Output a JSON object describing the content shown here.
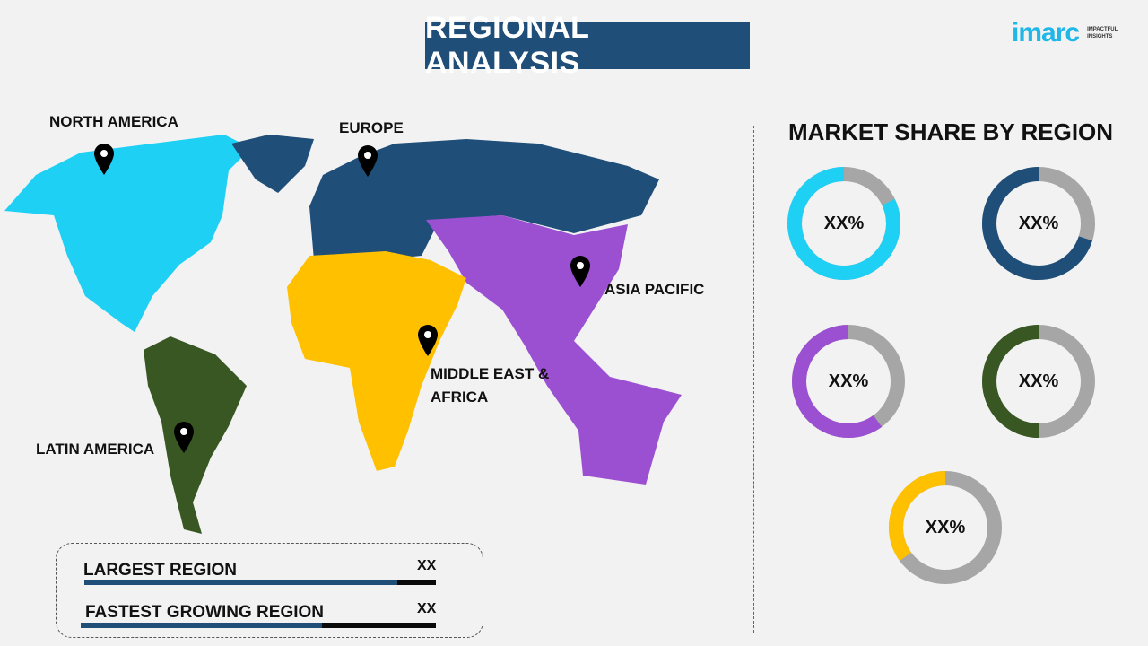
{
  "title": "REGIONAL ANALYSIS",
  "logo": {
    "word": "imarc",
    "tagline_1": "IMPACTFUL",
    "tagline_2": "INSIGHTS"
  },
  "map": {
    "regions": [
      {
        "name": "NORTH AMERICA",
        "color": "#1fd0f5"
      },
      {
        "name": "EUROPE",
        "color": "#1f4e79"
      },
      {
        "name": "ASIA PACIFIC",
        "color": "#9b4fd1"
      },
      {
        "name": "MIDDLE EAST &",
        "name_2": "AFRICA",
        "color": "#ffc000"
      },
      {
        "name": "LATIN AMERICA",
        "color": "#385723"
      }
    ],
    "marker_icon": "map-pin-icon"
  },
  "market_share": {
    "title": "MARKET SHARE BY REGION",
    "remainder_color": "#a6a6a6",
    "donuts": [
      {
        "region": "North America",
        "label": "XX%",
        "fill": 0.82,
        "color": "#1fd0f5"
      },
      {
        "region": "Europe",
        "label": "XX%",
        "fill": 0.7,
        "color": "#1f4e79"
      },
      {
        "region": "Asia Pacific",
        "label": "XX%",
        "fill": 0.6,
        "color": "#9b4fd1"
      },
      {
        "region": "Latin America",
        "label": "XX%",
        "fill": 0.5,
        "color": "#385723"
      },
      {
        "region": "Middle East & Africa",
        "label": "XX%",
        "fill": 0.35,
        "color": "#ffc000"
      }
    ]
  },
  "summary": {
    "rows": [
      {
        "label": "LARGEST REGION",
        "value": "XX",
        "fill": 0.89
      },
      {
        "label": "FASTEST GROWING REGION",
        "value": "XX",
        "fill": 0.68
      }
    ]
  }
}
